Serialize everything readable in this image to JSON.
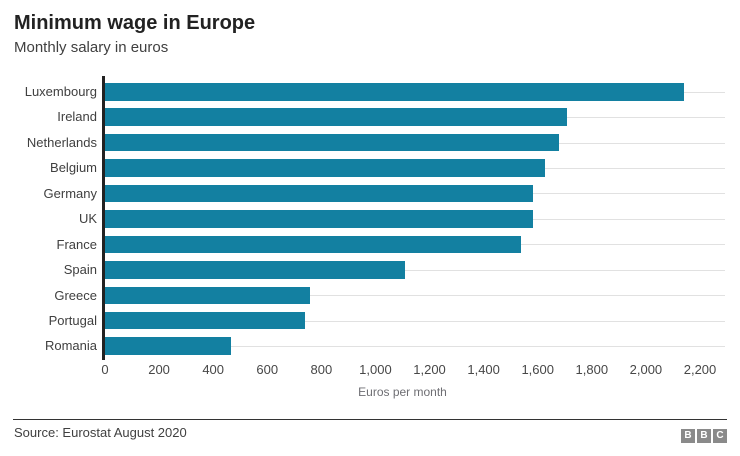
{
  "chart_data": {
    "type": "bar",
    "orientation": "horizontal",
    "title": "Minimum wage in Europe",
    "subtitle": "Monthly salary in euros",
    "categories": [
      "Luxembourg",
      "Ireland",
      "Netherlands",
      "Belgium",
      "Germany",
      "UK",
      "France",
      "Spain",
      "Greece",
      "Portugal",
      "Romania"
    ],
    "values": [
      2142,
      1707,
      1680,
      1626,
      1584,
      1583,
      1539,
      1108,
      758,
      741,
      466
    ],
    "xlabel": "Euros per month",
    "xlim": [
      0,
      2200
    ],
    "xticks": [
      0,
      200,
      400,
      600,
      800,
      1000,
      1200,
      1400,
      1600,
      1800,
      2000,
      2200
    ],
    "tick_labels": [
      "0",
      "200",
      "400",
      "600",
      "800",
      "1,000",
      "1,200",
      "1,400",
      "1,600",
      "1,800",
      "2,000",
      "2,200"
    ],
    "bar_color": "#1380A1",
    "grid": true,
    "legend": "none"
  },
  "footer": {
    "source": "Source: Eurostat August 2020",
    "logo_letters": [
      "B",
      "B",
      "C"
    ]
  }
}
